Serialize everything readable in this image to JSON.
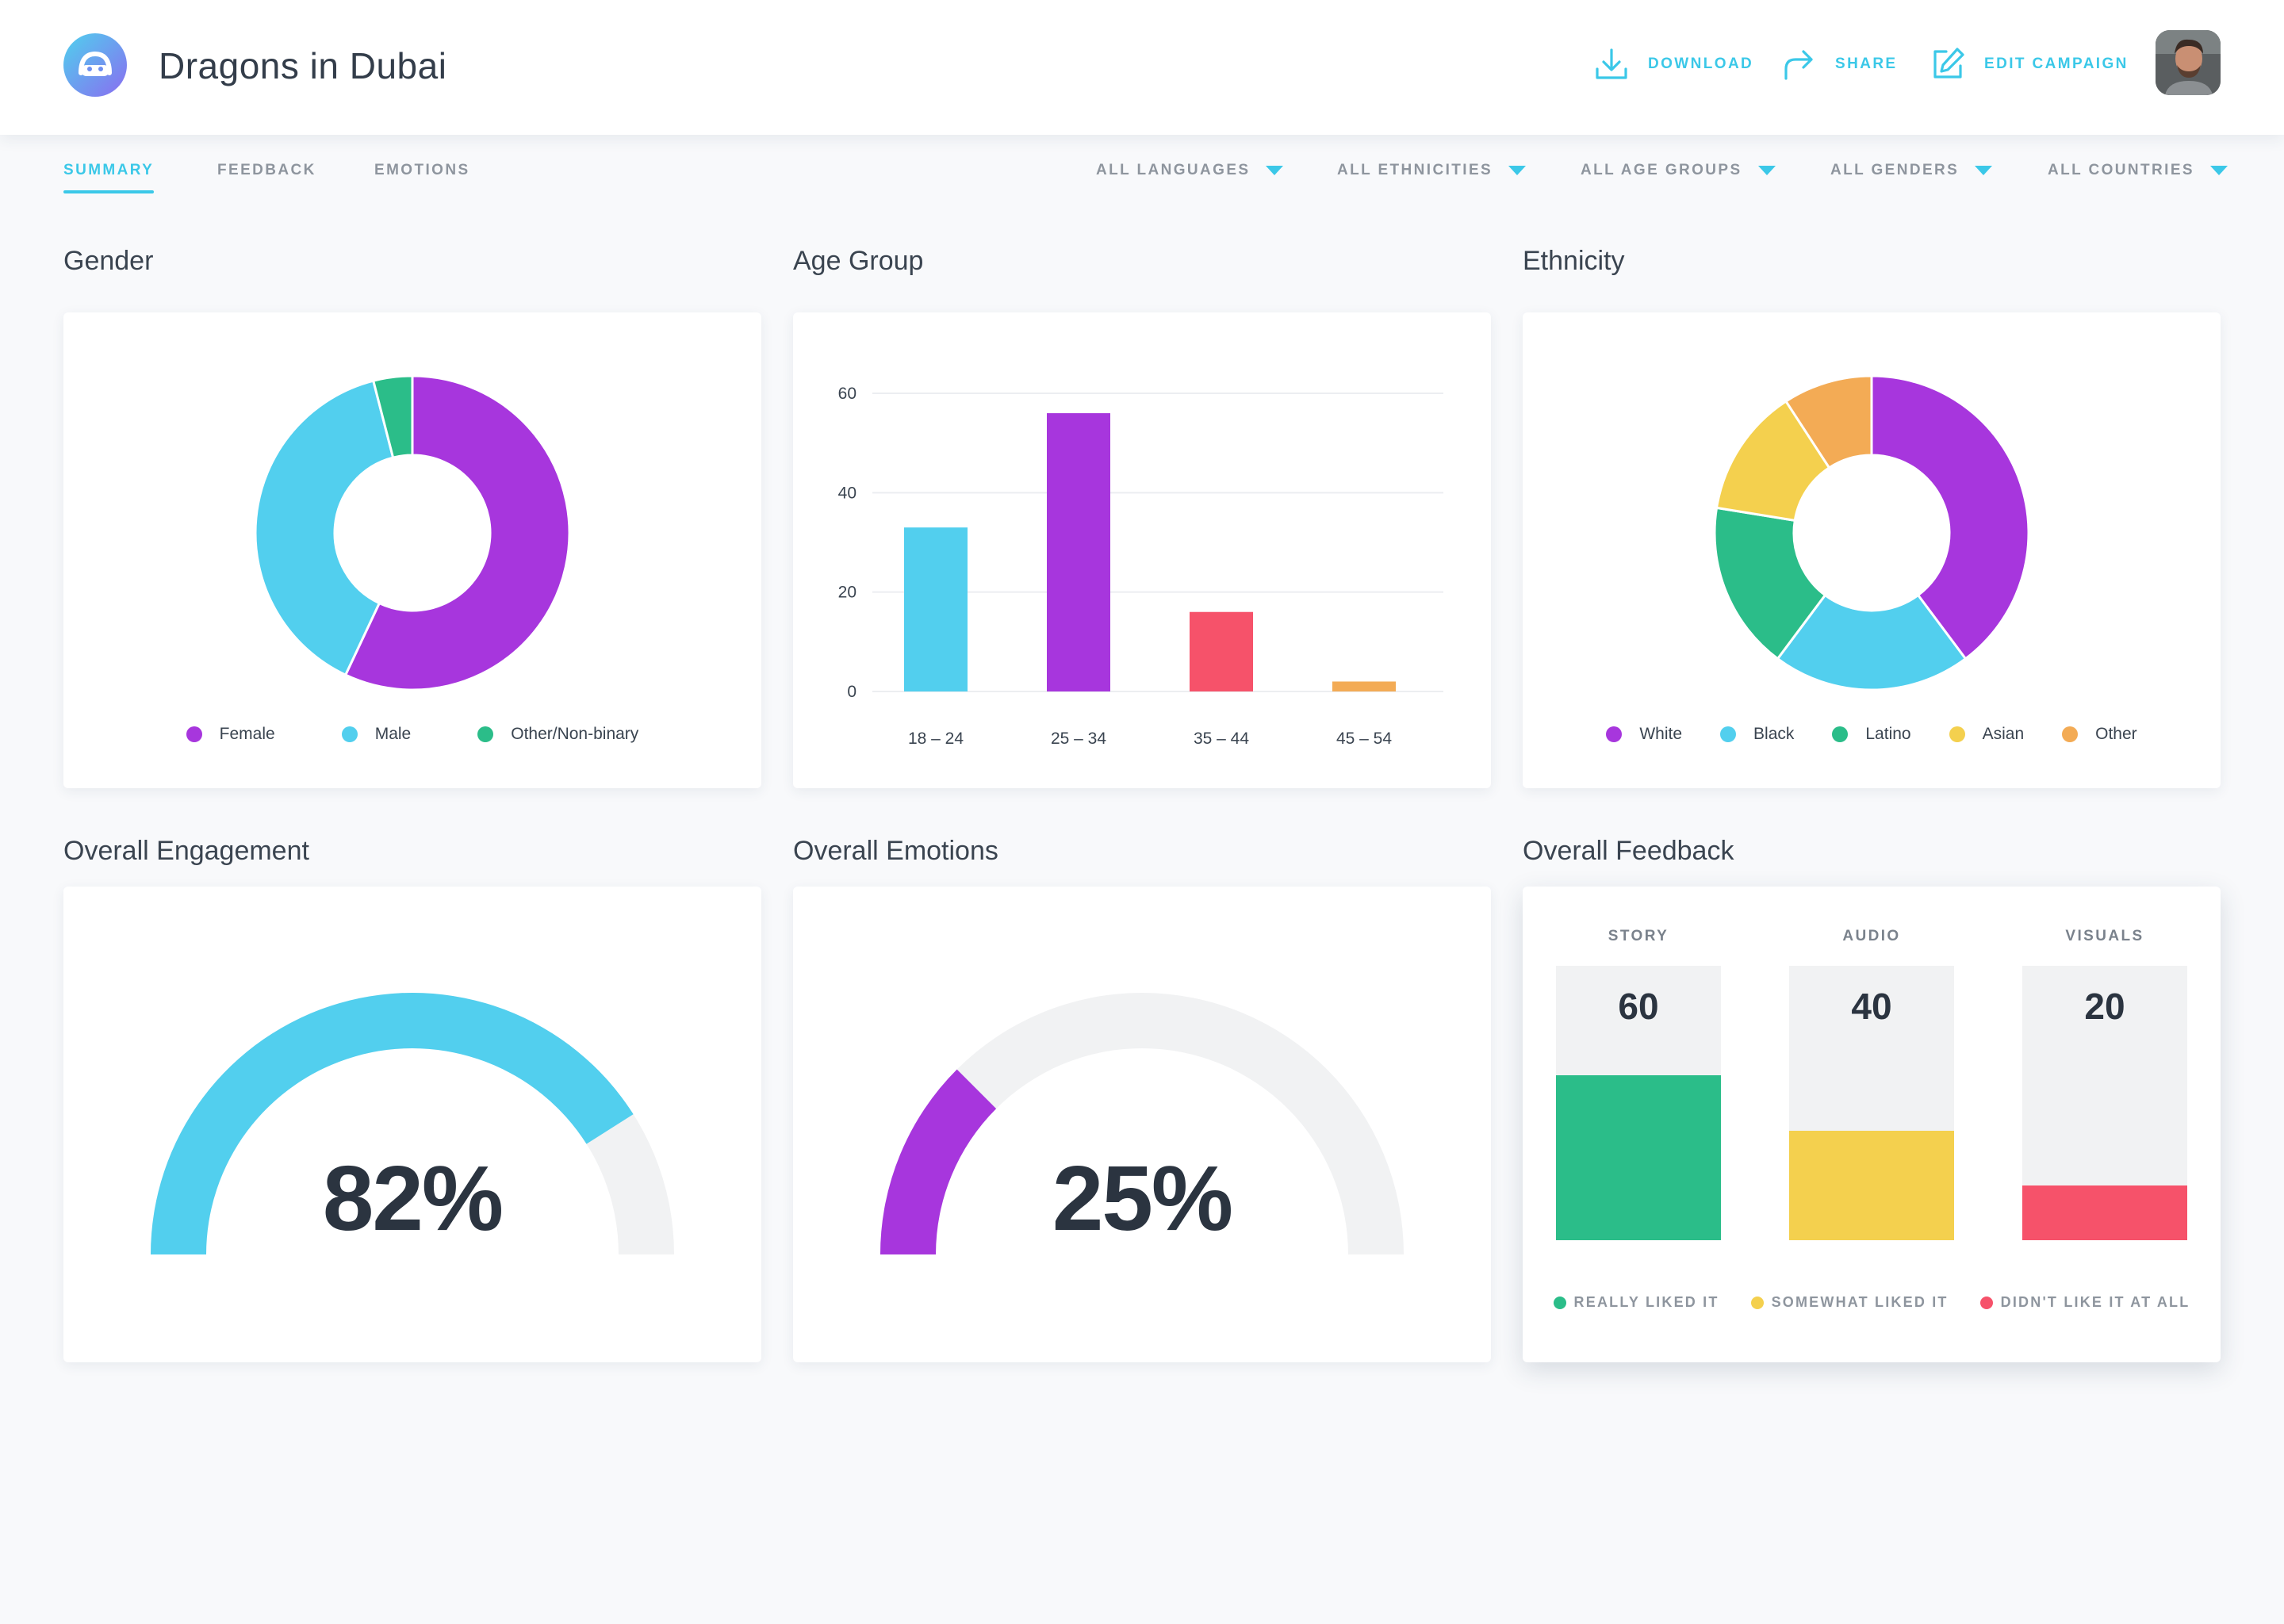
{
  "header": {
    "title": "Dragons in Dubai",
    "logo_icon": "mascot-face-icon",
    "actions": [
      {
        "label": "DOWNLOAD",
        "icon": "download-icon"
      },
      {
        "label": "SHARE",
        "icon": "share-arrow-icon"
      },
      {
        "label": "EDIT CAMPAIGN",
        "icon": "edit-icon"
      }
    ],
    "avatar_icon": "user-avatar"
  },
  "tabs": [
    {
      "label": "SUMMARY",
      "active": true
    },
    {
      "label": "FEEDBACK",
      "active": false
    },
    {
      "label": "EMOTIONS",
      "active": false
    }
  ],
  "filters": [
    {
      "label": "ALL LANGUAGES"
    },
    {
      "label": "ALL ETHNICITIES"
    },
    {
      "label": "ALL AGE GROUPS"
    },
    {
      "label": "ALL GENDERS"
    },
    {
      "label": "ALL COUNTRIES"
    }
  ],
  "colors": {
    "accent": "#3bc8e8",
    "purple": "#a736dd",
    "cyan": "#52cfee",
    "green": "#2bbd89",
    "red": "#f6526a",
    "yellow": "#f4d04e",
    "orange": "#f3ab55",
    "track": "#f1f2f3"
  },
  "sections": {
    "gender": "Gender",
    "age_group": "Age Group",
    "ethnicity": "Ethnicity",
    "engagement": "Overall Engagement",
    "emotions": "Overall Emotions",
    "feedback": "Overall Feedback"
  },
  "chart_data": [
    {
      "type": "pie",
      "donut": true,
      "title": "Gender",
      "labels": [
        "Female",
        "Male",
        "Other/Non-binary"
      ],
      "values": [
        57,
        39,
        4
      ],
      "colors": [
        "#a736dd",
        "#52cfee",
        "#2bbd89"
      ],
      "legend": "bottom"
    },
    {
      "type": "bar",
      "title": "Age Group",
      "categories": [
        "18 – 24",
        "25 – 34",
        "35 – 44",
        "45 – 54"
      ],
      "values": [
        33,
        56,
        16,
        2
      ],
      "colors": [
        "#52cfee",
        "#a736dd",
        "#f6526a",
        "#f3ab55"
      ],
      "ylim": [
        0,
        60
      ],
      "yticks": [
        "0",
        "20",
        "40",
        "60"
      ],
      "grid": true
    },
    {
      "type": "pie",
      "donut": true,
      "title": "Ethnicity",
      "labels": [
        "White",
        "Black",
        "Latino",
        "Asian",
        "Other"
      ],
      "values": [
        39,
        20,
        17,
        13,
        9
      ],
      "colors": [
        "#a736dd",
        "#52cfee",
        "#2bbd89",
        "#f4d04e",
        "#f3ab55"
      ],
      "legend": "bottom"
    }
  ],
  "engagement": {
    "value": 0.82,
    "display": "82%",
    "color": "#52cfee"
  },
  "emotions": {
    "value": 0.25,
    "display": "25%",
    "color": "#a736dd"
  },
  "feedback": {
    "columns": [
      {
        "label": "STORY",
        "value": "60",
        "fill": 0.6,
        "color": "#2bbd89"
      },
      {
        "label": "AUDIO",
        "value": "40",
        "fill": 0.4,
        "color": "#f4d04e"
      },
      {
        "label": "VISUALS",
        "value": "20",
        "fill": 0.2,
        "color": "#f6526a"
      }
    ],
    "legend": [
      {
        "label": "REALLY LIKED IT",
        "color": "#2bbd89"
      },
      {
        "label": "SOMEWHAT LIKED IT",
        "color": "#f4d04e"
      },
      {
        "label": "DIDN'T LIKE IT AT ALL",
        "color": "#f6526a"
      }
    ]
  }
}
